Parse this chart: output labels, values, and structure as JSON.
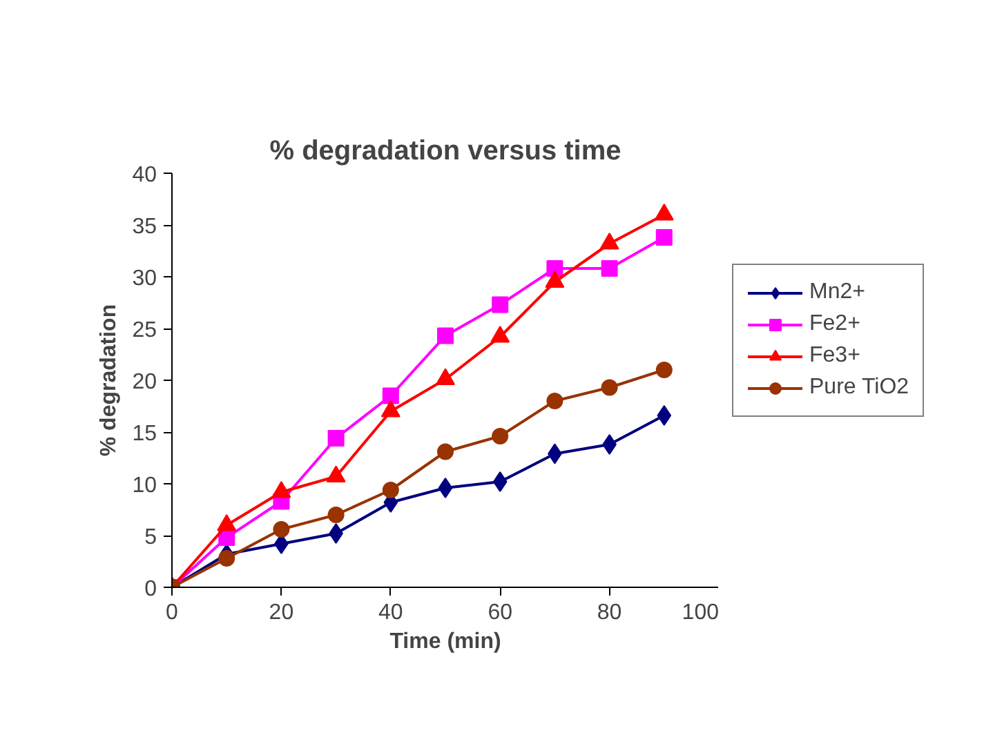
{
  "chart_data": {
    "type": "line",
    "title": "% degradation versus time",
    "xlabel": "Time (min)",
    "ylabel": "% degradation",
    "x": [
      0,
      10,
      20,
      30,
      40,
      50,
      60,
      70,
      80,
      90
    ],
    "xlim": [
      0,
      100
    ],
    "xticks": [
      0,
      20,
      40,
      60,
      80,
      100
    ],
    "ylim": [
      0,
      40
    ],
    "yticks": [
      0,
      5,
      10,
      15,
      20,
      25,
      30,
      35,
      40
    ],
    "grid": false,
    "legend": "right",
    "line_style": "solid",
    "series": [
      {
        "name": "Mn2+",
        "color": "#000080",
        "marker": "diamond",
        "values": [
          0,
          3.2,
          4.2,
          5.2,
          8.2,
          9.6,
          10.2,
          12.9,
          13.8,
          16.6
        ]
      },
      {
        "name": "Fe2+",
        "color": "#ff00ff",
        "marker": "square",
        "values": [
          0,
          4.8,
          8.3,
          14.4,
          18.5,
          24.3,
          27.3,
          30.8,
          30.8,
          33.8
        ]
      },
      {
        "name": "Fe3+",
        "color": "#ff0000",
        "marker": "triangle",
        "values": [
          0,
          6,
          9.2,
          10.7,
          17.0,
          20.1,
          24.2,
          29.5,
          33.2,
          36
        ]
      },
      {
        "name": "Pure TiO2",
        "color": "#993300",
        "marker": "circle",
        "values": [
          0,
          2.8,
          5.6,
          7.0,
          9.4,
          13.1,
          14.6,
          18.0,
          19.3,
          21
        ]
      }
    ]
  }
}
